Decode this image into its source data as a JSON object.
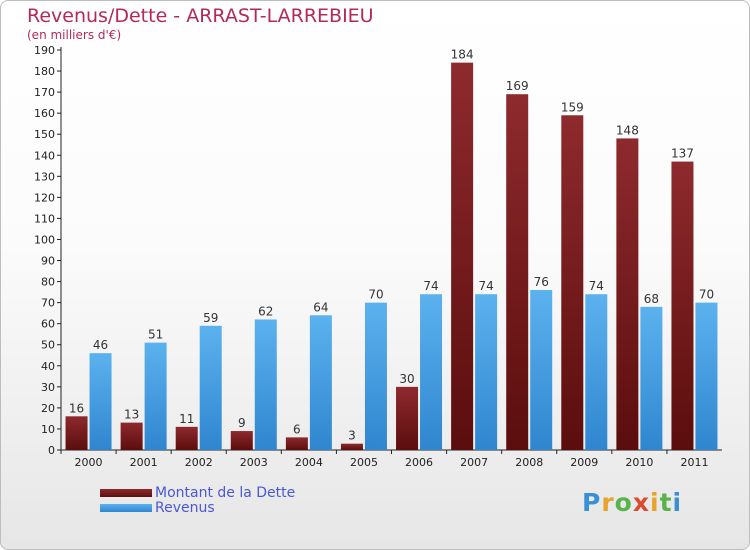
{
  "title": "Revenus/Dette - ARRAST-LARREBIEU",
  "subtitle": "(en milliers d'€)",
  "colors": {
    "title": "#b5285a",
    "dette": "#7a2020",
    "revenus": "#4aa3e3",
    "legend_text": "#4a57d6"
  },
  "legend": {
    "dette_label": "Montant de la Dette",
    "revenus_label": "Revenus"
  },
  "logo": {
    "letters": [
      "P",
      "r",
      "o",
      "x",
      "i",
      "t",
      "i"
    ]
  },
  "chart_data": {
    "type": "bar",
    "categories": [
      "2000",
      "2001",
      "2002",
      "2003",
      "2004",
      "2005",
      "2006",
      "2007",
      "2008",
      "2009",
      "2010",
      "2011"
    ],
    "series": [
      {
        "name": "Montant de la Dette",
        "values": [
          16,
          13,
          11,
          9,
          6,
          3,
          30,
          184,
          169,
          159,
          148,
          137
        ]
      },
      {
        "name": "Revenus",
        "values": [
          46,
          51,
          59,
          62,
          64,
          70,
          74,
          74,
          76,
          74,
          68,
          70
        ]
      }
    ],
    "yticks": [
      0,
      10,
      20,
      30,
      40,
      50,
      60,
      70,
      80,
      90,
      100,
      110,
      120,
      130,
      140,
      150,
      160,
      170,
      180,
      190
    ],
    "ylim": [
      0,
      190
    ],
    "grid": false,
    "legend_position": "bottom-left"
  }
}
